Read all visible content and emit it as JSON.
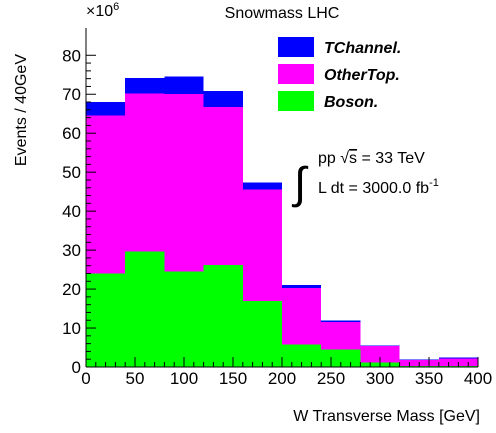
{
  "chart_data": {
    "type": "bar",
    "stacked": true,
    "title": "Snowmass LHC",
    "xlabel": "W Transverse Mass [GeV]",
    "ylabel": "Events / 40GeV",
    "y_multiplier": "×10^6",
    "xlim": [
      0,
      400
    ],
    "ylim": [
      0,
      87
    ],
    "x_ticks": [
      0,
      50,
      100,
      150,
      200,
      250,
      300,
      350,
      400
    ],
    "y_ticks": [
      0,
      10,
      20,
      30,
      40,
      50,
      60,
      70,
      80
    ],
    "bin_edges": [
      0,
      40,
      80,
      120,
      160,
      200,
      240,
      280,
      320,
      360,
      400
    ],
    "series": [
      {
        "name": "Boson.",
        "color": "#00ff00",
        "values": [
          24.0,
          29.7,
          24.5,
          26.2,
          17.0,
          5.8,
          4.5,
          1.2,
          0.2,
          0.2
        ]
      },
      {
        "name": "OtherTop.",
        "color": "#ff00ff",
        "values": [
          40.5,
          40.5,
          45.5,
          40.5,
          28.5,
          14.5,
          7.0,
          4.2,
          1.6,
          2.0
        ]
      },
      {
        "name": "TChannel.",
        "color": "#0000ff",
        "values": [
          3.5,
          4.0,
          4.6,
          4.1,
          1.9,
          0.7,
          0.4,
          0.1,
          0.1,
          0.2
        ]
      }
    ],
    "legend": [
      "TChannel.",
      "OtherTop.",
      "Boson."
    ],
    "legend_placement": "top-right",
    "annotation": {
      "integral_sign": "∫",
      "line1_prefix": "pp ",
      "sqrt_sign": "√",
      "sqrt_arg": "s",
      "line1_suffix": " = 33 TeV",
      "line2": "L dt = 3000.0 fb",
      "line2_sup": "-1"
    },
    "grid": false
  }
}
